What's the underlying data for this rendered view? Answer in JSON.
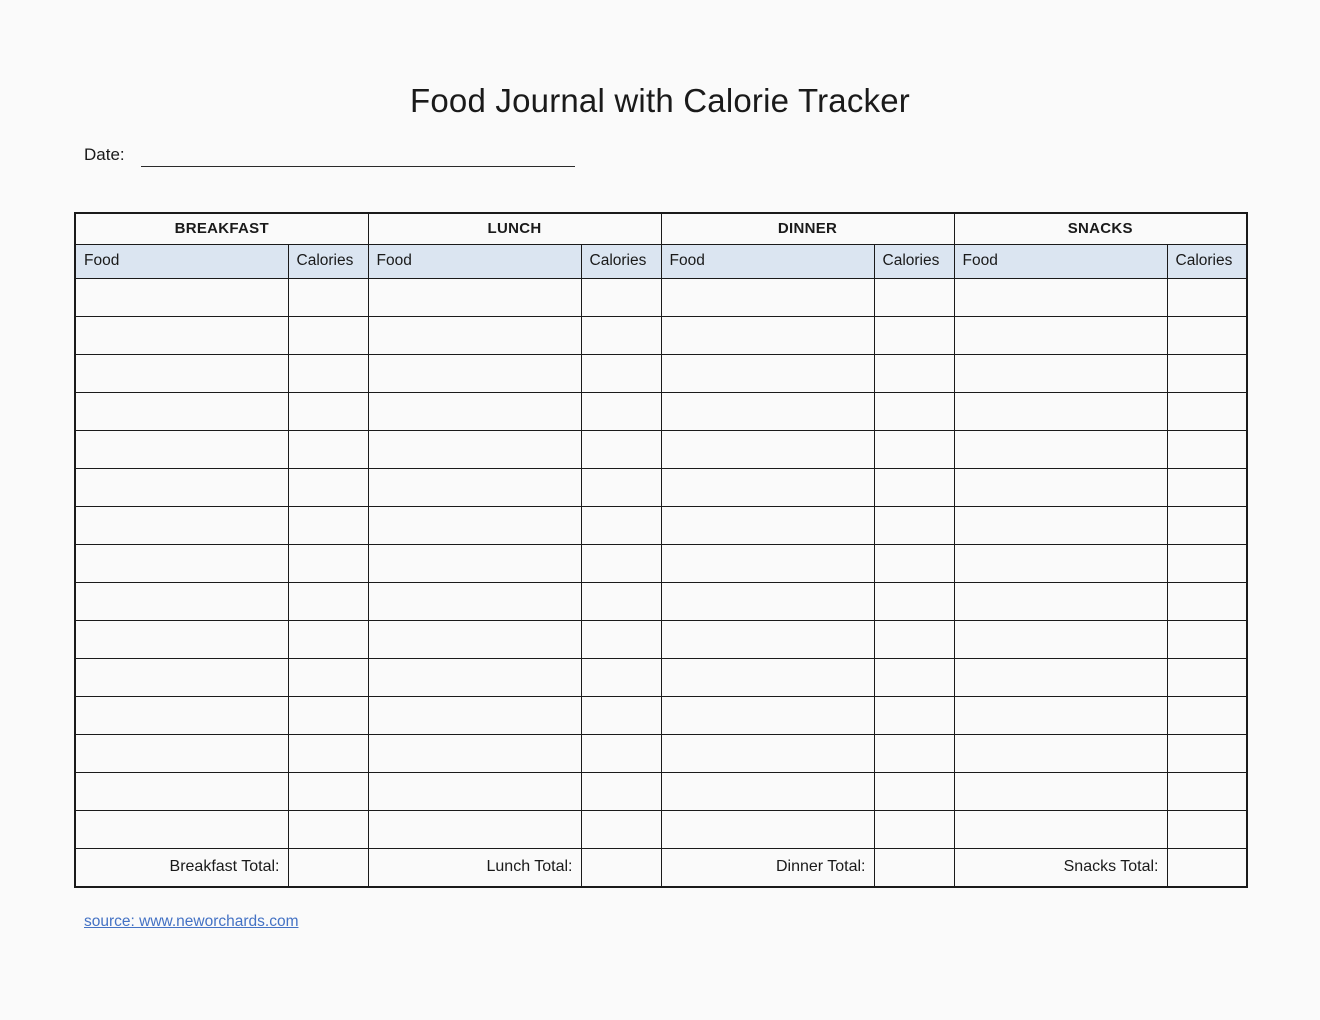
{
  "title": "Food Journal with Calorie Tracker",
  "date": {
    "label": "Date:",
    "value": ""
  },
  "table": {
    "empty_row_count": 15,
    "sections": [
      {
        "name": "BREAKFAST",
        "food_header": "Food",
        "calories_header": "Calories",
        "total_label": "Breakfast Total:",
        "total_value": ""
      },
      {
        "name": "LUNCH",
        "food_header": "Food",
        "calories_header": "Calories",
        "total_label": "Lunch Total:",
        "total_value": ""
      },
      {
        "name": "DINNER",
        "food_header": "Food",
        "calories_header": "Calories",
        "total_label": "Dinner Total:",
        "total_value": ""
      },
      {
        "name": "SNACKS",
        "food_header": "Food",
        "calories_header": "Calories",
        "total_label": "Snacks Total:",
        "total_value": ""
      }
    ]
  },
  "footer": {
    "source_link": "source: www.neworchards.com"
  },
  "colors": {
    "page_bg": "#fafafa",
    "header_bg": "#dbe5f1",
    "border_color": "#1a1a1a",
    "link_color": "#4472c4",
    "text_color": "#1a1a1a"
  }
}
